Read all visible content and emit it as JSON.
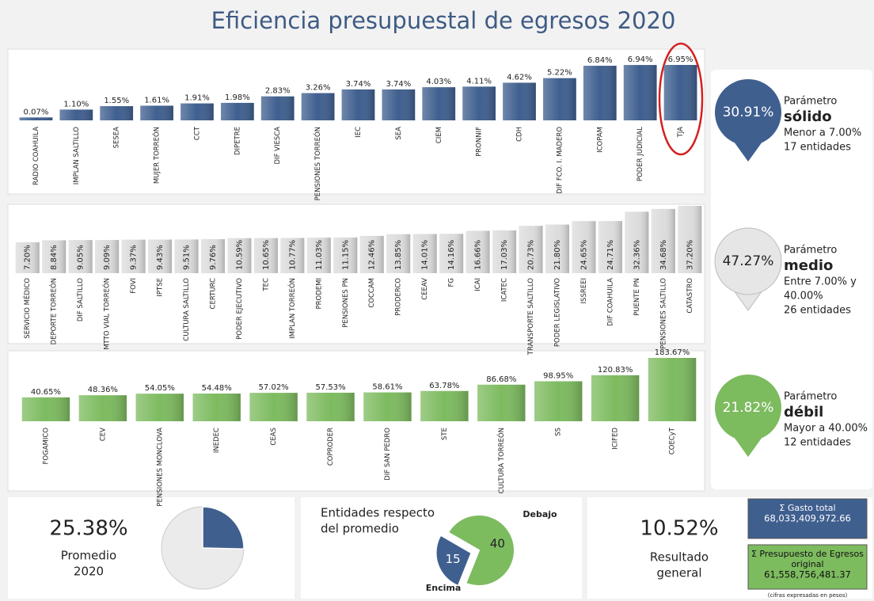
{
  "title": "Eficiencia presupuestal de egresos 2020",
  "chart_data": [
    {
      "type": "bar",
      "color": "#3f5f8f",
      "categories": [
        "RADIO COAHUILA",
        "IMPLAN SALTILLO",
        "SESEA",
        "MUJER TORREÓN",
        "CCT",
        "DIPETRE",
        "DIF VIESCA",
        "PENSIONES TORREÓN",
        "IEC",
        "SEA",
        "CIEM",
        "PRONNIF",
        "CDH",
        "DIF FCO. I. MADERO",
        "ICOPAM",
        "PODER JUDICIAL",
        "TJA"
      ],
      "values": [
        0.07,
        1.1,
        1.55,
        1.61,
        1.91,
        1.98,
        2.83,
        3.26,
        3.74,
        3.74,
        4.03,
        4.11,
        4.62,
        5.22,
        6.84,
        6.94,
        6.95
      ],
      "value_labels": [
        "0.07%",
        "1.10%",
        "1.55%",
        "1.61%",
        "1.91%",
        "1.98%",
        "2.83%",
        "3.26%",
        "3.74%",
        "3.74%",
        "4.03%",
        "4.11%",
        "4.62%",
        "5.22%",
        "6.84%",
        "6.94%",
        "6.95%"
      ]
    },
    {
      "type": "bar",
      "color": "#dcdcdc",
      "categories": [
        "SERVICIO MÉDICO",
        "DEPORTE TORREÓN",
        "DIF SALTILLO",
        "MTTO VIAL TORREÓN",
        "FOVI",
        "IPTSE",
        "CULTURA SALTILLO",
        "CERTURC",
        "PODER EJECUTIVO",
        "TEC",
        "IMPLAN TORREÓN",
        "PRODEMI",
        "PENSIONES PN",
        "COCCAM",
        "PRODERCO",
        "CEEAV",
        "FG",
        "ICAI",
        "ICATEC",
        "TRANSPORTE SALTILLO",
        "PODER LEGISLATIVO",
        "ISSREEI",
        "DIF COAHUILA",
        "PUENTE PN",
        "PENSIONES SALTILLO",
        "CATASTRO"
      ],
      "values": [
        7.2,
        8.84,
        9.05,
        9.09,
        9.37,
        9.43,
        9.51,
        9.76,
        10.59,
        10.65,
        10.77,
        11.03,
        11.15,
        12.46,
        13.85,
        14.01,
        14.16,
        16.66,
        17.03,
        20.73,
        21.8,
        24.65,
        24.71,
        32.36,
        34.68,
        37.2
      ],
      "value_labels": [
        "7.20%",
        "8.84%",
        "9.05%",
        "9.09%",
        "9.37%",
        "9.43%",
        "9.51%",
        "9.76%",
        "10.59%",
        "10.65%",
        "10.77%",
        "11.03%",
        "11.15%",
        "12.46%",
        "13.85%",
        "14.01%",
        "14.16%",
        "16.66%",
        "17.03%",
        "20.73%",
        "21.80%",
        "24.65%",
        "24.71%",
        "32.36%",
        "34.68%",
        "37.20%"
      ]
    },
    {
      "type": "bar",
      "color": "#7dbb5f",
      "categories": [
        "FOGAMICO",
        "CEV",
        "PENSIONES MONCLOVA",
        "INEDEC",
        "CEAS",
        "COPRODER",
        "DIF SAN PEDRO",
        "STE",
        "CULTURA TORREÓN",
        "SS",
        "ICIFED",
        "COECyT"
      ],
      "values": [
        40.65,
        48.36,
        54.05,
        54.48,
        57.02,
        57.53,
        58.61,
        63.78,
        86.68,
        98.95,
        120.83,
        183.67
      ],
      "value_labels": [
        "40.65%",
        "48.36%",
        "54.05%",
        "54.48%",
        "57.02%",
        "57.53%",
        "58.61%",
        "63.78%",
        "86.68%",
        "98.95%",
        "120.83%",
        "183.67%"
      ]
    },
    {
      "type": "pie",
      "title": [
        "Entidades respecto",
        "del promedio"
      ],
      "categories": [
        "Debajo",
        "Encima"
      ],
      "values": [
        40,
        15
      ],
      "colors": [
        "#7dbb5f",
        "#3f5f8f"
      ]
    }
  ],
  "parameters": [
    {
      "share": "30.91%",
      "title": "Parámetro",
      "level": "sólido",
      "range": [
        "Menor a 7.00%"
      ],
      "count": "17 entidades",
      "color": "#3f5f8f"
    },
    {
      "share": "47.27%",
      "title": "Parámetro",
      "level": "medio",
      "range": [
        "Entre 7.00% y",
        "40.00%"
      ],
      "count": "26 entidades",
      "color": "#e6e6e6"
    },
    {
      "share": "21.82%",
      "title": "Parámetro",
      "level": "débil",
      "range": [
        "Mayor a 40.00%"
      ],
      "count": "12 entidades",
      "color": "#7dbb5f"
    }
  ],
  "average": {
    "value": 25.38,
    "label": "25.38%",
    "caption": [
      "Promedio",
      "2020"
    ],
    "color": "#3f5f8f"
  },
  "result": {
    "label": "10.52%",
    "caption": [
      "Resultado",
      "general"
    ]
  },
  "totals": [
    {
      "label": [
        "Σ Gasto total"
      ],
      "amount": "68,033,409,972.66",
      "color": "#3f5f8f"
    },
    {
      "label": [
        "Σ Presupuesto de Egresos",
        "original"
      ],
      "amount": "61,558,756,481.37",
      "color": "#7dbb5f"
    }
  ],
  "note": "(cifras expresadas en pesos)"
}
